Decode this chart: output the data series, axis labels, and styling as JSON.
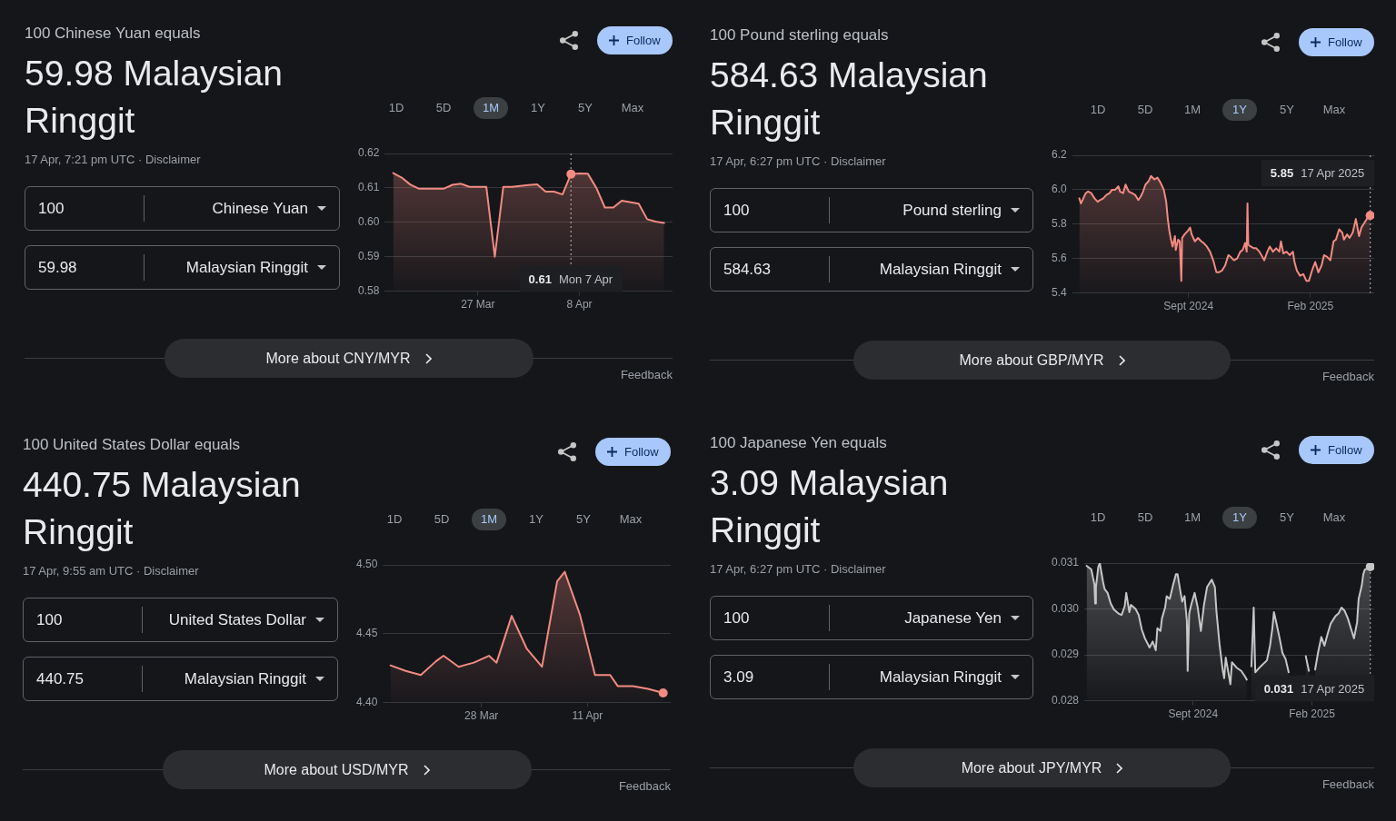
{
  "chart_data": [
    {
      "type": "area",
      "title": "59.98 Malaysian Ringgit",
      "x": [
        "--03-17",
        "--03-18",
        "--03-19",
        "--03-20",
        "--03-22",
        "--03-23",
        "--03-24",
        "--03-25",
        "--03-26",
        "--03-28",
        "--03-29",
        "--03-30",
        "--03-31",
        "--04-02",
        "--04-03",
        "--04-04",
        "--04-05",
        "--04-06",
        "--04-07",
        "--04-08",
        "--04-09",
        "--04-10",
        "--04-11",
        "--04-12",
        "--04-13",
        "--04-15",
        "--04-16",
        "--04-17",
        "--04-18"
      ],
      "series": [
        {
          "color": "#f28b82",
          "values": [
            0.6143,
            0.613,
            0.611,
            0.6098,
            0.6098,
            0.6098,
            0.6109,
            0.6112,
            0.6103,
            0.6103,
            0.59,
            0.6103,
            0.6103,
            0.6108,
            0.611,
            0.6089,
            0.6089,
            0.6081,
            0.614,
            0.6142,
            0.6141,
            0.61,
            0.6043,
            0.6043,
            0.6063,
            0.6054,
            0.6009,
            0.6002,
            0.5998
          ]
        },
        {
          "type": "scatter",
          "x": [
            "--04-07"
          ],
          "values": [
            0.614
          ],
          "color": "#f28b82"
        }
      ],
      "xlim": [
        "--03-16",
        "--04-19"
      ],
      "xticks": [
        {
          "value": "--03-27",
          "label": "27 Mar"
        },
        {
          "value": "--04-08",
          "label": "8 Apr"
        }
      ],
      "ylim": [
        0.58,
        0.62
      ],
      "yticks": [
        0.58,
        0.59,
        {
          "value": 0.6,
          "label": "0.60"
        },
        0.61,
        0.62
      ],
      "grid": "y",
      "ref_lines": [
        {
          "axis": "x",
          "value": "--04-07",
          "line_style": "dotted",
          "color": "#9aa0a6"
        }
      ],
      "annotations": [
        "100 Chinese Yuan equals",
        "17 Apr, 7:21 pm UTC · Disclaimer",
        "100",
        "Chinese Yuan",
        "59.98",
        "Malaysian Ringgit",
        "Follow",
        "1D",
        "5D",
        "1M",
        "1Y",
        "5Y",
        "Max",
        "More about CNY/MYR",
        "Feedback",
        "0.61 Mon 7 Apr"
      ]
    },
    {
      "type": "area",
      "title": "584.63 Malaysian Ringgit",
      "x": [
        "2024-04-17",
        "2024-04-19",
        "2024-04-25",
        "2024-04-28",
        "2024-05-02",
        "2024-05-06",
        "2024-05-10",
        "2024-05-13",
        "2024-05-17",
        "2024-05-21",
        "2024-05-25",
        "2024-05-28",
        "2024-06-01",
        "2024-06-05",
        "2024-06-07",
        "2024-06-11",
        "2024-06-14",
        "2024-06-18",
        "2024-06-22",
        "2024-06-26",
        "2024-06-30",
        "2024-07-03",
        "2024-07-06",
        "2024-07-09",
        "2024-07-13",
        "2024-07-16",
        "2024-07-20",
        "2024-07-24",
        "2024-07-28",
        "2024-08-01",
        "2024-08-04",
        "2024-08-06",
        "2024-08-08",
        "2024-08-10",
        "2024-08-12",
        "2024-08-15",
        "2024-08-16",
        "2024-08-19",
        "2024-08-21",
        "2024-08-23",
        "2024-08-24",
        "2024-08-27",
        "2024-08-31",
        "2024-09-03",
        "2024-09-05",
        "2024-09-09",
        "2024-09-13",
        "2024-09-17",
        "2024-09-20",
        "2024-09-24",
        "2024-09-28",
        "2024-10-02",
        "2024-10-06",
        "2024-10-09",
        "2024-10-13",
        "2024-10-17",
        "2024-10-21",
        "2024-10-24",
        "2024-10-28",
        "2024-11-01",
        "2024-11-05",
        "2024-11-08",
        "2024-11-11",
        "2024-11-13",
        "2024-11-14",
        "2024-11-15",
        "2024-11-18",
        "2024-11-22",
        "2024-11-25",
        "2024-11-29",
        "2024-12-05",
        "2024-12-09",
        "2024-12-12",
        "2024-12-16",
        "2024-12-20",
        "2024-12-24",
        "2024-12-26",
        "2024-12-29",
        "2025-01-02",
        "2025-01-06",
        "2025-01-10",
        "2025-01-12",
        "2025-01-15",
        "2025-01-19",
        "2025-01-23",
        "2025-01-27",
        "2025-01-30",
        "2025-02-03",
        "2025-02-07",
        "2025-02-11",
        "2025-02-15",
        "2025-02-18",
        "2025-02-22",
        "2025-02-26",
        "2025-03-02",
        "2025-03-05",
        "2025-03-09",
        "2025-03-13",
        "2025-03-15",
        "2025-03-19",
        "2025-03-22",
        "2025-03-26",
        "2025-03-30",
        "2025-04-01",
        "2025-04-03",
        "2025-04-06",
        "2025-04-10",
        "2025-04-14",
        "2025-04-17"
      ],
      "series": [
        {
          "color": "#f28b82",
          "values": [
            5.95,
            5.92,
            5.98,
            5.99,
            5.98,
            5.95,
            5.93,
            5.94,
            5.95,
            5.97,
            5.98,
            6.0,
            6.0,
            6.02,
            5.99,
            5.98,
            6.03,
            5.99,
            5.98,
            5.97,
            5.94,
            5.96,
            5.99,
            6.03,
            6.05,
            6.08,
            6.06,
            6.07,
            6.04,
            6.0,
            5.93,
            5.83,
            5.76,
            5.71,
            5.67,
            5.73,
            5.65,
            5.71,
            5.7,
            5.47,
            5.72,
            5.74,
            5.76,
            5.78,
            5.74,
            5.7,
            5.72,
            5.7,
            5.69,
            5.67,
            5.64,
            5.59,
            5.52,
            5.52,
            5.53,
            5.56,
            5.62,
            5.61,
            5.59,
            5.6,
            5.64,
            5.65,
            5.69,
            5.64,
            5.92,
            5.68,
            5.67,
            5.66,
            5.66,
            5.64,
            5.59,
            5.64,
            5.67,
            5.64,
            5.66,
            5.64,
            5.7,
            5.63,
            5.64,
            5.62,
            5.64,
            5.58,
            5.53,
            5.5,
            5.51,
            5.47,
            5.47,
            5.53,
            5.58,
            5.52,
            5.56,
            5.62,
            5.61,
            5.59,
            5.7,
            5.71,
            5.77,
            5.75,
            5.71,
            5.74,
            5.72,
            5.75,
            5.83,
            5.78,
            5.73,
            5.78,
            5.81,
            5.84,
            5.85
          ]
        },
        {
          "type": "scatter",
          "x": [
            "2025-04-17"
          ],
          "values": [
            5.85
          ],
          "color": "#f28b82"
        }
      ],
      "xlim": [
        "2024-04-08",
        "2025-04-22"
      ],
      "xticks": [
        {
          "value": "2024-09",
          "label": "Sept 2024"
        },
        {
          "value": "2025-02",
          "label": "Feb 2025"
        }
      ],
      "ylim": [
        5.4,
        6.2
      ],
      "yticks": [
        5.4,
        5.6,
        5.8,
        {
          "value": 6,
          "label": "6.0"
        },
        6.2
      ],
      "grid": "y",
      "ref_lines": [
        {
          "axis": "x",
          "value": "2025-04-17",
          "line_style": "dotted",
          "color": "#9aa0a6"
        }
      ],
      "annotations": [
        "100 Pound sterling equals",
        "17 Apr, 6:27 pm UTC · Disclaimer",
        "100",
        "Pound sterling",
        "584.63",
        "Malaysian Ringgit",
        "Follow",
        "1D",
        "5D",
        "1M",
        "1Y",
        "5Y",
        "Max",
        "More about GBP/MYR",
        "Feedback",
        "5.85 17 Apr 2025"
      ]
    },
    {
      "type": "area",
      "title": "440.75 Malaysian Ringgit",
      "x": [
        "--03-16",
        "--03-18",
        "--03-20",
        "--03-22",
        "--03-23",
        "--03-25",
        "--03-27",
        "--03-29",
        "--03-30",
        "--04-01",
        "--04-03",
        "--04-05",
        "--04-07",
        "--04-08",
        "--04-10",
        "--04-12",
        "--04-14",
        "--04-15",
        "--04-17",
        "--04-19",
        "--04-21"
      ],
      "series": [
        {
          "color": "#f28b82",
          "values": [
            4.427,
            4.423,
            4.42,
            4.43,
            4.434,
            4.426,
            4.429,
            4.434,
            4.429,
            4.463,
            4.439,
            4.426,
            4.488,
            4.495,
            4.464,
            4.42,
            4.42,
            4.412,
            4.412,
            4.41,
            4.407
          ]
        },
        {
          "type": "scatter",
          "x": [
            "--04-21"
          ],
          "values": [
            4.407
          ],
          "color": "#f28b82"
        }
      ],
      "xlim": [
        "--03-15",
        "--04-22"
      ],
      "xticks": [
        {
          "value": "--03-28",
          "label": "28 Mar"
        },
        {
          "value": "--04-11",
          "label": "11 Apr"
        }
      ],
      "ylim": [
        4.4,
        4.5
      ],
      "yticks": [
        {
          "value": 4.4,
          "label": "4.40"
        },
        4.45,
        {
          "value": 4.5,
          "label": "4.50"
        }
      ],
      "grid": "y",
      "annotations": [
        "100 United States Dollar equals",
        "17 Apr, 9:55 am UTC · Disclaimer",
        "100",
        "United States Dollar",
        "440.75",
        "Malaysian Ringgit",
        "Follow",
        "1D",
        "5D",
        "1M",
        "1Y",
        "5Y",
        "Max",
        "More about USD/MYR",
        "Feedback"
      ]
    },
    {
      "type": "area",
      "title": "3.09 Malaysian Ringgit",
      "x": [
        "2024-04-17",
        "2024-04-23",
        "2024-04-27",
        "2024-04-28",
        "2024-04-29",
        "2024-05-02",
        "2024-05-04",
        "2024-05-08",
        "2024-05-10",
        "2024-05-14",
        "2024-05-18",
        "2024-05-22",
        "2024-05-28",
        "2024-06-01",
        "2024-06-05",
        "2024-06-07",
        "2024-06-11",
        "2024-06-13",
        "2024-06-19",
        "2024-06-23",
        "2024-06-27",
        "2024-07-01",
        "2024-07-07",
        "2024-07-11",
        "2024-07-15",
        "2024-07-17",
        "2024-07-21",
        "2024-07-23",
        "2024-07-27",
        "2024-07-29",
        "2024-08-02",
        "2024-08-06",
        "2024-08-10",
        "2024-08-12",
        "2024-08-16",
        "2024-08-18",
        "2024-08-21",
        "2024-08-24",
        "2024-08-25",
        "2024-08-27",
        "2024-08-30",
        "2024-09-03",
        "2024-09-07",
        "2024-09-11",
        "2024-09-15",
        "2024-09-19",
        "2024-09-25",
        "2024-09-29",
        "2024-10-01",
        "2024-10-05",
        "2024-10-09",
        "2024-10-11",
        "2024-10-13",
        "2024-10-15",
        "2024-10-19",
        "2024-10-21",
        "2024-10-27",
        "2024-11-02",
        "2024-11-07",
        "2024-11-09",
        "2024-11-13",
        "2024-11-15",
        "2024-11-18",
        "2024-11-20",
        "2024-11-27",
        "2024-12-05",
        "2024-12-09",
        "2024-12-12",
        "2024-12-14",
        "2024-12-17",
        "2024-12-21",
        "2024-12-25",
        "2024-12-29",
        "2025-01-02",
        "2025-01-08",
        "2025-01-12",
        "2025-01-18",
        "2025-01-24",
        "2025-01-28",
        "2025-02-01",
        "2025-02-05",
        "2025-02-09",
        "2025-02-13",
        "2025-02-17",
        "2025-02-21",
        "2025-02-25",
        "2025-03-03",
        "2025-03-07",
        "2025-03-11",
        "2025-03-15",
        "2025-03-19",
        "2025-03-23",
        "2025-03-27",
        "2025-03-31",
        "2025-04-02",
        "2025-04-06",
        "2025-04-08",
        "2025-04-10",
        "2025-04-14",
        "2025-04-17"
      ],
      "series": [
        {
          "color": "#c4c7c5",
          "values": [
            0.03094,
            0.03086,
            0.03054,
            0.03012,
            0.03048,
            0.03092,
            0.031,
            0.0306,
            0.03044,
            0.03035,
            0.03012,
            0.02999,
            0.0299,
            0.02987,
            0.03006,
            0.03035,
            0.02993,
            0.03009,
            0.03,
            0.02987,
            0.02955,
            0.02936,
            0.02916,
            0.02929,
            0.0291,
            0.02958,
            0.02952,
            0.0298,
            0.03003,
            0.03028,
            0.03022,
            0.03051,
            0.03076,
            0.03076,
            0.03035,
            0.03016,
            0.03028,
            0.02974,
            0.02865,
            0.0299,
            0.03012,
            0.03035,
            0.03003,
            0.02952,
            0.03009,
            0.03048,
            0.03064,
            0.03048,
            0.02996,
            0.02923,
            0.02868,
            0.02849,
            0.02894,
            0.02875,
            0.02836,
            0.02884,
            0.02872,
            0.02865,
            0.02852,
            0.02846,
            null,
            0.02875,
            0.03003,
            0.02862,
            0.02875,
            0.02888,
            0.0292,
            0.02958,
            0.02993,
            0.02971,
            0.02939,
            0.02904,
            0.02891,
            0.02862,
            null,
            null,
            null,
            0.02897,
            0.02865,
            null,
            0.02868,
            0.02907,
            0.02939,
            0.0292,
            0.02945,
            0.02968,
            0.02984,
            0.0299,
            0.03003,
            0.02996,
            0.0298,
            0.02958,
            0.02936,
            0.02971,
            0.03022,
            0.03051,
            0.03076,
            0.03086,
            0.03089,
            0.03092
          ]
        },
        {
          "type": "scatter",
          "x": [
            "2025-04-17"
          ],
          "values": [
            0.03092
          ],
          "color": "#c4c7c5"
        }
      ],
      "xlim": [
        "2024-04-14",
        "2025-04-22"
      ],
      "xticks": [
        {
          "value": "2024-09",
          "label": "Sept 2024"
        },
        {
          "value": "2025-02",
          "label": "Feb 2025"
        }
      ],
      "ylim": [
        0.028,
        0.031
      ],
      "yticks": [
        0.028,
        0.029,
        {
          "value": 0.03,
          "label": "0.030"
        },
        0.031
      ],
      "grid": "y",
      "ref_lines": [
        {
          "axis": "x",
          "value": "2025-04-17",
          "line_style": "dotted",
          "color": "#9aa0a6"
        }
      ],
      "annotations": [
        "100 Japanese Yen equals",
        "17 Apr, 6:27 pm UTC · Disclaimer",
        "100",
        "Japanese Yen",
        "3.09",
        "Malaysian Ringgit",
        "Follow",
        "1D",
        "5D",
        "1M",
        "1Y",
        "5Y",
        "Max",
        "More about JPY/MYR",
        "Feedback",
        "0.031 17 Apr 2025"
      ]
    }
  ]
}
